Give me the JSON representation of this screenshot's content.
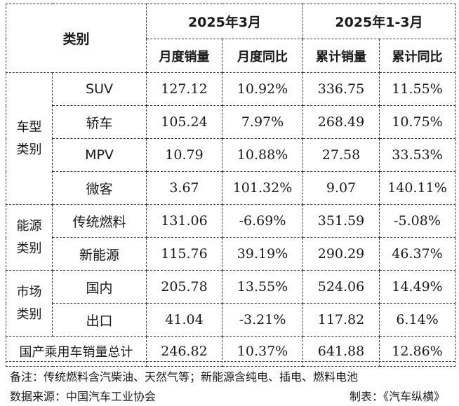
{
  "header": {
    "category": "类别",
    "period_month": "2025年3月",
    "period_ytd": "2025年1-3月",
    "col_month_sales": "月度销量",
    "col_month_yoy": "月度同比",
    "col_ytd_sales": "累计销量",
    "col_ytd_yoy": "累计同比"
  },
  "groups": [
    {
      "name_line1": "车型",
      "name_line2": "类别",
      "rows": [
        {
          "label": "SUV",
          "month_sales": "127.12",
          "month_yoy": "10.92%",
          "ytd_sales": "336.75",
          "ytd_yoy": "11.55%"
        },
        {
          "label": "轿车",
          "month_sales": "105.24",
          "month_yoy": "7.97%",
          "ytd_sales": "268.49",
          "ytd_yoy": "10.75%"
        },
        {
          "label": "MPV",
          "month_sales": "10.79",
          "month_yoy": "10.88%",
          "ytd_sales": "27.58",
          "ytd_yoy": "33.53%"
        },
        {
          "label": "微客",
          "month_sales": "3.67",
          "month_yoy": "101.32%",
          "ytd_sales": "9.07",
          "ytd_yoy": "140.11%"
        }
      ]
    },
    {
      "name_line1": "能源",
      "name_line2": "类别",
      "rows": [
        {
          "label": "传统燃料",
          "month_sales": "131.06",
          "month_yoy": "-6.69%",
          "ytd_sales": "351.59",
          "ytd_yoy": "-5.08%"
        },
        {
          "label": "新能源",
          "month_sales": "115.76",
          "month_yoy": "39.19%",
          "ytd_sales": "290.29",
          "ytd_yoy": "46.37%"
        }
      ]
    },
    {
      "name_line1": "市场",
      "name_line2": "类别",
      "rows": [
        {
          "label": "国内",
          "month_sales": "205.78",
          "month_yoy": "13.55%",
          "ytd_sales": "524.06",
          "ytd_yoy": "14.49%"
        },
        {
          "label": "出口",
          "month_sales": "41.04",
          "month_yoy": "-3.21%",
          "ytd_sales": "117.82",
          "ytd_yoy": "6.14%"
        }
      ]
    }
  ],
  "total": {
    "label": "国产乘用车销量总计",
    "month_sales": "246.82",
    "month_yoy": "10.37%",
    "ytd_sales": "641.88",
    "ytd_yoy": "12.86%"
  },
  "notes": {
    "remark": "备注：传统燃料含汽柴油、天然气等；新能源含纯电、插电、燃料电池",
    "source": "数据来源：中国汽车工业协会",
    "credit": "制表：《汽车纵横》"
  }
}
